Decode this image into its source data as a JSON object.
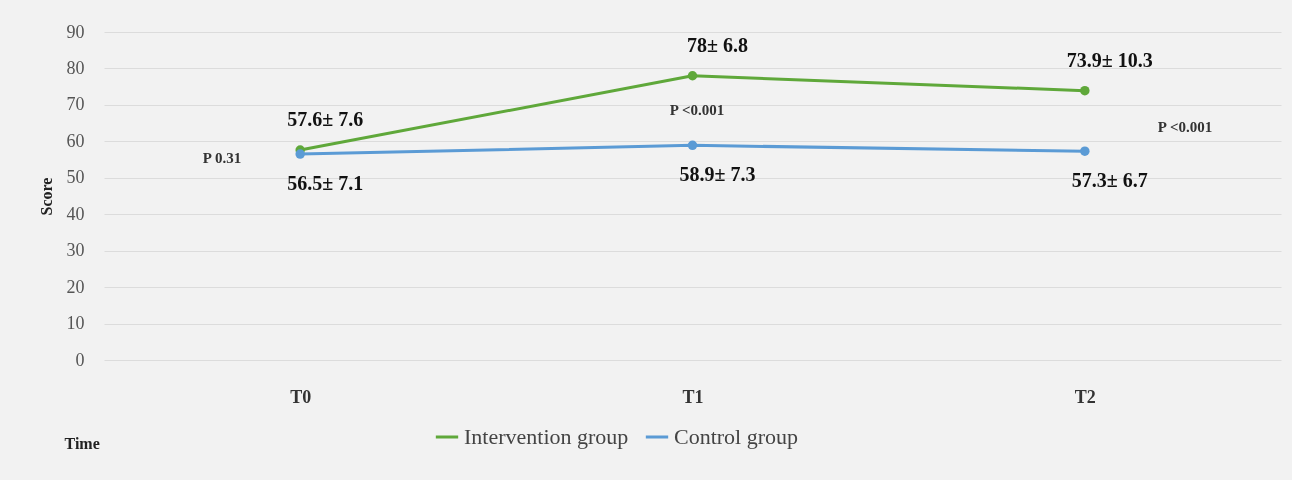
{
  "chart_data": {
    "type": "line",
    "xlabel": "Time",
    "ylabel": "Score",
    "categories": [
      "T0",
      "T1",
      "T2"
    ],
    "series": [
      {
        "name": "Intervention group",
        "color": "#5fa83a",
        "values": [
          57.6,
          78,
          73.9
        ],
        "value_labels": [
          "57.6± 7.6",
          "78± 6.8",
          "73.9± 10.3"
        ]
      },
      {
        "name": "Control group",
        "color": "#5b9bd5",
        "values": [
          56.5,
          58.9,
          57.3
        ],
        "value_labels": [
          "56.5± 7.1",
          "58.9± 7.3",
          "57.3± 6.7"
        ]
      }
    ],
    "ylim": [
      0,
      90
    ],
    "yticks": [
      0,
      10,
      20,
      30,
      40,
      50,
      60,
      70,
      80,
      90
    ],
    "grid": "y",
    "legend": "bottom",
    "marker": "circle",
    "line_style": "solid",
    "annotations": [
      "P 0.31",
      "P <0.001",
      "P <0.001"
    ]
  }
}
